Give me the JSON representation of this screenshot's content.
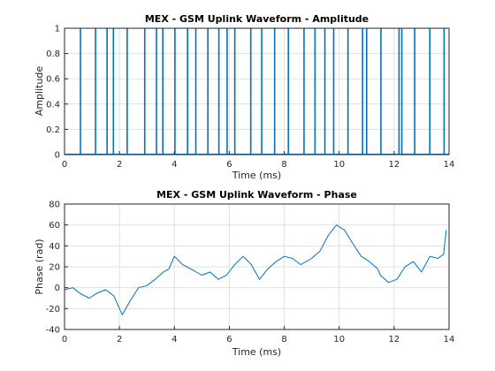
{
  "colors": {
    "series": "#0072bd",
    "axes": "#262626",
    "grid": "#e0e0e0"
  },
  "chart_data": [
    {
      "type": "line",
      "title": "MEX - GSM Uplink Waveform - Amplitude",
      "xlabel": "Time (ms)",
      "ylabel": "Amplitude",
      "xlim": [
        0,
        14
      ],
      "ylim": [
        0,
        1
      ],
      "xticks": [
        0,
        2,
        4,
        6,
        8,
        10,
        12,
        14
      ],
      "yticks": [
        0,
        0.2,
        0.4,
        0.6,
        0.8,
        1
      ],
      "ytick_labels": [
        "0",
        "0.2",
        "0.4",
        "0.6",
        "0.8",
        "1"
      ],
      "grid": true,
      "description_of_signal": "",
      "series": [
        {
          "baseline": 0,
          "burst_level": 1,
          "x": [
            0.58,
            1.13,
            1.55,
            1.78,
            2.28,
            2.92,
            3.35,
            3.58,
            4.02,
            4.48,
            4.78,
            5.22,
            5.62,
            5.92,
            6.2,
            6.78,
            7.18,
            7.65,
            8.15,
            8.72,
            9.12,
            9.48,
            9.8,
            10.32,
            10.85,
            11.0,
            11.52,
            12.18,
            12.28,
            12.75,
            13.3,
            13.82
          ]
        }
      ]
    },
    {
      "type": "line",
      "title": "MEX - GSM Uplink Waveform - Phase",
      "xlabel": "Time (ms)",
      "ylabel": "Phase (rad)",
      "xlim": [
        0,
        14
      ],
      "ylim": [
        -40,
        80
      ],
      "xticks": [
        0,
        2,
        4,
        6,
        8,
        10,
        12,
        14
      ],
      "yticks": [
        -40,
        -20,
        0,
        20,
        40,
        60,
        80
      ],
      "ytick_labels": [
        "-40",
        "-20",
        "0",
        "20",
        "40",
        "60",
        "80"
      ],
      "grid": true,
      "series": [
        {
          "x": [
            0,
            0.3,
            0.6,
            0.9,
            1.2,
            1.5,
            1.8,
            2.0,
            2.1,
            2.4,
            2.7,
            3.0,
            3.3,
            3.6,
            3.8,
            4.0,
            4.3,
            4.6,
            5.0,
            5.3,
            5.6,
            5.9,
            6.2,
            6.5,
            6.8,
            7.1,
            7.4,
            7.7,
            8.0,
            8.3,
            8.6,
            9.0,
            9.3,
            9.6,
            9.9,
            10.2,
            10.5,
            10.8,
            11.1,
            11.4,
            11.5,
            11.8,
            12.1,
            12.4,
            12.7,
            13.0,
            13.3,
            13.6,
            13.8,
            13.9
          ],
          "y": [
            -2,
            0,
            -6,
            -10,
            -5,
            -2,
            -8,
            -20,
            -26,
            -12,
            0,
            2,
            8,
            15,
            18,
            30,
            22,
            18,
            12,
            15,
            8,
            12,
            22,
            30,
            22,
            8,
            18,
            25,
            30,
            28,
            22,
            28,
            35,
            50,
            60,
            55,
            42,
            30,
            25,
            18,
            12,
            5,
            8,
            20,
            25,
            15,
            30,
            28,
            32,
            55
          ]
        }
      ]
    }
  ]
}
